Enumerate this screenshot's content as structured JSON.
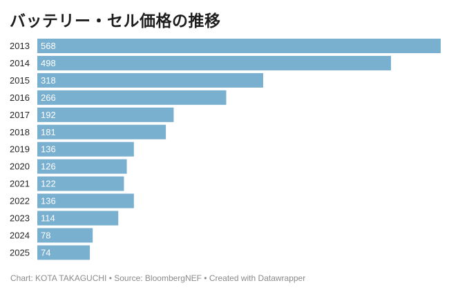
{
  "chart_data": {
    "type": "bar",
    "orientation": "horizontal",
    "title": "バッテリー・セル価格の推移",
    "categories": [
      "2013",
      "2014",
      "2015",
      "2016",
      "2017",
      "2018",
      "2019",
      "2020",
      "2021",
      "2022",
      "2023",
      "2024",
      "2025"
    ],
    "values": [
      568,
      498,
      318,
      266,
      192,
      181,
      136,
      126,
      122,
      136,
      114,
      78,
      74
    ],
    "xlabel": "",
    "ylabel": "",
    "xlim": [
      0,
      568
    ],
    "grid": false,
    "legend": "none",
    "data_labels": "inside-left",
    "bar_color": "#79afcf",
    "label_color": "#ffffff"
  },
  "footer": {
    "credit": "Chart: KOTA TAKAGUCHI • Source: BloombergNEF • Created with Datawrapper"
  }
}
